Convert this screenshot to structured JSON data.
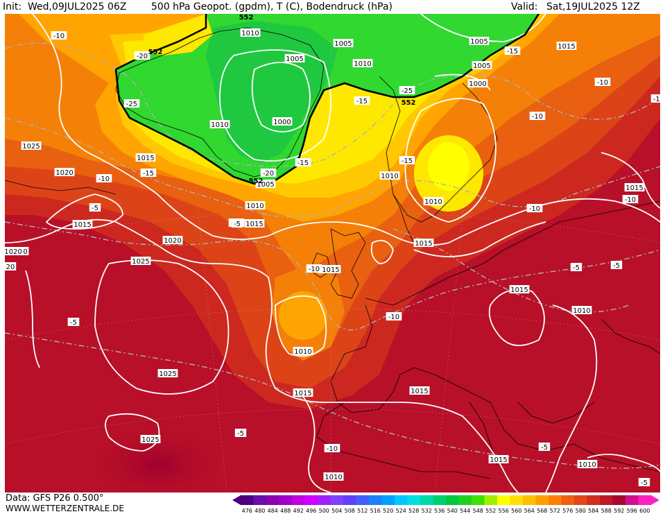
{
  "header": {
    "init_label": "Init:",
    "init_value": "Wed,09JUL2025 06Z",
    "title": "500 hPa Geopot. (gpdm), T (C), Bodendruck (hPa)",
    "valid_label": "Valid:",
    "valid_value": "Sat,19JUL2025 12Z"
  },
  "footer": {
    "data_source": "Data: GFS P26 0.500°",
    "website": "WWW.WETTERZENTRALE.DE"
  },
  "legend": {
    "values": [
      "476",
      "480",
      "484",
      "488",
      "492",
      "496",
      "500",
      "504",
      "508",
      "512",
      "516",
      "520",
      "524",
      "528",
      "532",
      "536",
      "540",
      "544",
      "548",
      "552",
      "556",
      "560",
      "564",
      "568",
      "572",
      "576",
      "580",
      "584",
      "588",
      "592",
      "596",
      "600"
    ],
    "colors": [
      "#4b0082",
      "#6a0dad",
      "#8b00b4",
      "#a000c8",
      "#c000e0",
      "#d000ff",
      "#a020ff",
      "#8040ff",
      "#6040ff",
      "#4060ff",
      "#2080ff",
      "#00a0ff",
      "#00c8ff",
      "#00e0e0",
      "#00d8a8",
      "#00d070",
      "#00c840",
      "#20d020",
      "#40e000",
      "#a0f000",
      "#ffff00",
      "#ffe000",
      "#ffc000",
      "#ffa000",
      "#ff8000",
      "#f06010",
      "#e04818",
      "#d03020",
      "#c01828",
      "#a80830",
      "#d01090",
      "#ff20c0"
    ]
  },
  "pressure_labels": [
    {
      "text": "1010"
    },
    {
      "text": "1005"
    },
    {
      "text": "1005"
    },
    {
      "text": "1010"
    },
    {
      "text": "1005"
    },
    {
      "text": "1000"
    },
    {
      "text": "1010"
    },
    {
      "text": "1015"
    },
    {
      "text": "1005"
    },
    {
      "text": "1000"
    },
    {
      "text": "1010"
    },
    {
      "text": "1025"
    },
    {
      "text": "1015"
    },
    {
      "text": "1020"
    },
    {
      "text": "1015"
    },
    {
      "text": "1010"
    },
    {
      "text": "1010"
    },
    {
      "text": "1005"
    },
    {
      "text": "1015"
    },
    {
      "text": "1015"
    },
    {
      "text": "1015"
    },
    {
      "text": "1020"
    },
    {
      "text": "1020"
    },
    {
      "text": "1025"
    },
    {
      "text": "1015"
    },
    {
      "text": "1015"
    },
    {
      "text": "1015"
    },
    {
      "text": "1010"
    },
    {
      "text": "1010"
    },
    {
      "text": "1025"
    },
    {
      "text": "1015"
    },
    {
      "text": "1015"
    },
    {
      "text": "1025"
    },
    {
      "text": "1015"
    },
    {
      "text": "1010"
    },
    {
      "text": "1010"
    },
    {
      "text": "1010"
    },
    {
      "text": "1015"
    }
  ],
  "temperature_labels": [
    {
      "text": "-10"
    },
    {
      "text": "-20"
    },
    {
      "text": "-25"
    },
    {
      "text": "-15"
    },
    {
      "text": "-10"
    },
    {
      "text": "-5"
    },
    {
      "text": "-10"
    },
    {
      "text": "-20"
    },
    {
      "text": "-15"
    },
    {
      "text": "-25"
    },
    {
      "text": "-15"
    },
    {
      "text": "-15"
    },
    {
      "text": "-15"
    },
    {
      "text": "-10"
    },
    {
      "text": "-10"
    },
    {
      "text": "-10"
    },
    {
      "text": "-10"
    },
    {
      "text": "-10"
    },
    {
      "text": "-5"
    },
    {
      "text": "-5"
    },
    {
      "text": "-5"
    },
    {
      "text": "-5"
    },
    {
      "text": "-10"
    },
    {
      "text": "-5"
    },
    {
      "text": "-5"
    },
    {
      "text": "-5"
    },
    {
      "text": "-10"
    },
    {
      "text": "-5"
    },
    {
      "text": "-10"
    }
  ],
  "geopotential_labels": [
    {
      "text": "552"
    },
    {
      "text": "552"
    },
    {
      "text": "552"
    },
    {
      "text": "552"
    }
  ],
  "left_edge_labels": [
    {
      "text": "1020"
    },
    {
      "text": "20"
    }
  ]
}
